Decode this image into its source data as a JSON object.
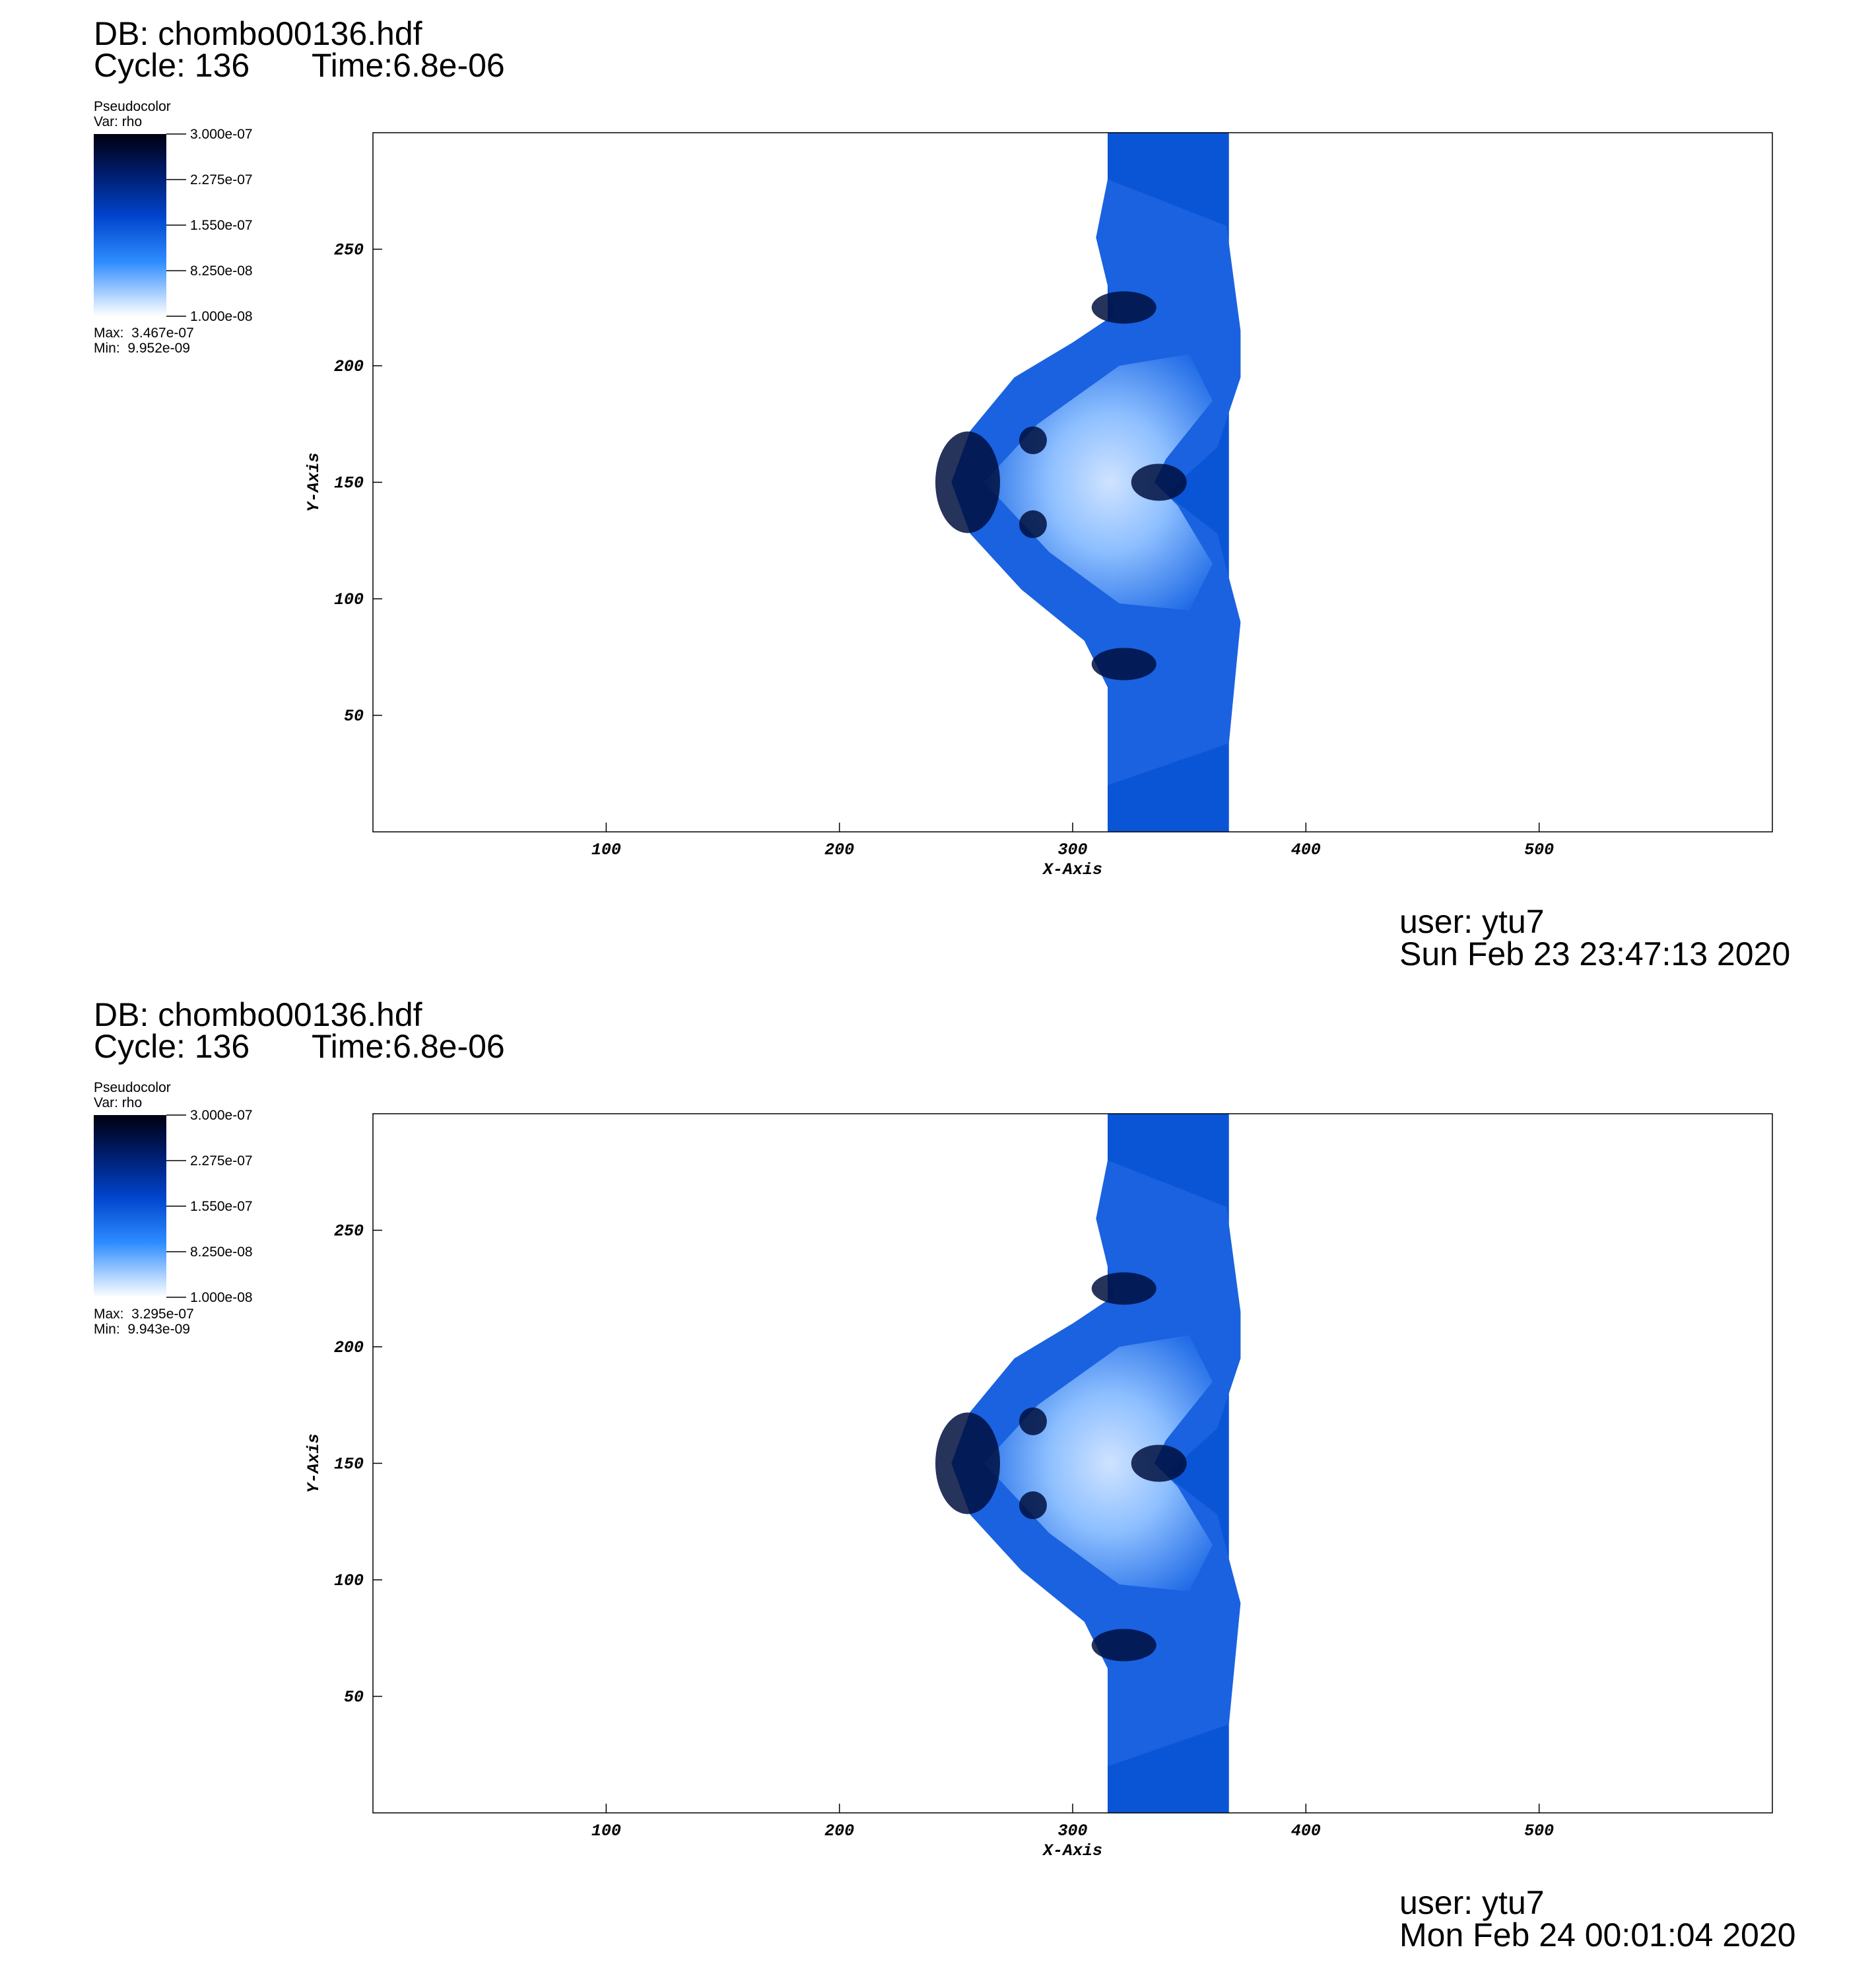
{
  "chart_data": [
    {
      "type": "pseudocolor",
      "title": "DB: chombo00136.hdf",
      "cycle": "Cycle: 136",
      "time": "Time:6.8e-06",
      "legend_title": "Pseudocolor",
      "legend_var": "Var: rho",
      "colorbar_ticks": [
        {
          "value": 3e-07,
          "label": "3.000e-07"
        },
        {
          "value": 2.275e-07,
          "label": "2.275e-07"
        },
        {
          "value": 1.55e-07,
          "label": "1.550e-07"
        },
        {
          "value": 8.25e-08,
          "label": "8.250e-08"
        },
        {
          "value": 1e-08,
          "label": "1.000e-08"
        }
      ],
      "max_label": "Max:  3.467e-07",
      "min_label": "Min:  9.952e-09",
      "xlabel": "X-Axis",
      "ylabel": "Y-Axis",
      "xlim": [
        0,
        600
      ],
      "ylim": [
        0,
        300
      ],
      "xticks": [
        100,
        200,
        300,
        400,
        500
      ],
      "yticks": [
        50,
        100,
        150,
        200,
        250
      ],
      "user": "user: ytu7",
      "date": "Sun Feb 23 23:47:13 2020"
    },
    {
      "type": "pseudocolor",
      "title": "DB: chombo00136.hdf",
      "cycle": "Cycle: 136",
      "time": "Time:6.8e-06",
      "legend_title": "Pseudocolor",
      "legend_var": "Var: rho",
      "colorbar_ticks": [
        {
          "value": 3e-07,
          "label": "3.000e-07"
        },
        {
          "value": 2.275e-07,
          "label": "2.275e-07"
        },
        {
          "value": 1.55e-07,
          "label": "1.550e-07"
        },
        {
          "value": 8.25e-08,
          "label": "8.250e-08"
        },
        {
          "value": 1e-08,
          "label": "1.000e-08"
        }
      ],
      "max_label": "Max:  3.295e-07",
      "min_label": "Min:  9.943e-09",
      "xlabel": "X-Axis",
      "ylabel": "Y-Axis",
      "xlim": [
        0,
        600
      ],
      "ylim": [
        0,
        300
      ],
      "xticks": [
        100,
        200,
        300,
        400,
        500
      ],
      "yticks": [
        50,
        100,
        150,
        200,
        250
      ],
      "user": "user: ytu7",
      "date": "Mon Feb 24 00:01:04 2020"
    }
  ]
}
